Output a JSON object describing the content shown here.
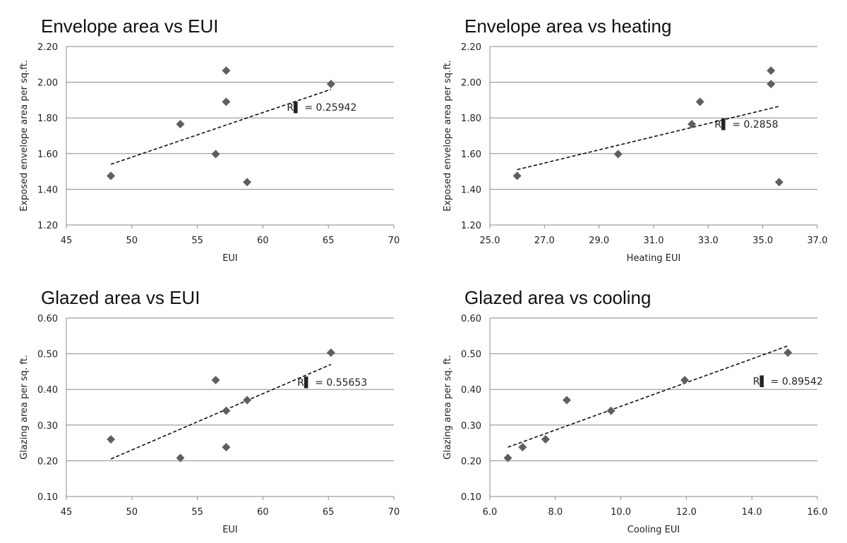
{
  "chart_data": [
    {
      "type": "scatter",
      "title": "Envelope area vs EUI",
      "xlabel": "EUI",
      "ylabel": "Exposed envelope area per sq.ft.",
      "xlim": [
        45,
        70
      ],
      "ylim": [
        1.2,
        2.2
      ],
      "xticks": [
        "45",
        "50",
        "55",
        "60",
        "65",
        "70"
      ],
      "yticks": [
        "1.20",
        "1.40",
        "1.60",
        "1.80",
        "2.00",
        "2.20"
      ],
      "series": [
        {
          "marker_color": "#5f5f5f",
          "x": [
            48.4,
            53.7,
            56.4,
            57.2,
            57.2,
            58.8,
            65.2
          ],
          "y": [
            1.475,
            1.765,
            1.597,
            2.065,
            1.89,
            1.44,
            1.99
          ]
        }
      ],
      "trendline": {
        "x": [
          48.4,
          65.2
        ],
        "y": [
          1.54,
          1.96
        ]
      },
      "r2_label": "R▌ = 0.25942",
      "r2_pos": [
        64.5,
        1.84
      ]
    },
    {
      "type": "scatter",
      "title": "Envelope area vs heating",
      "xlabel": "Heating EUI",
      "ylabel": "Exposed envelope area per sq.ft.",
      "xlim": [
        25,
        37
      ],
      "ylim": [
        1.2,
        2.2
      ],
      "xticks": [
        "25.0",
        "27.0",
        "29.0",
        "31.0",
        "33.0",
        "35.0",
        "37.0"
      ],
      "yticks": [
        "1.20",
        "1.40",
        "1.60",
        "1.80",
        "2.00",
        "2.20"
      ],
      "series": [
        {
          "marker_color": "#5f5f5f",
          "x": [
            26.0,
            29.7,
            32.4,
            32.7,
            35.3,
            35.3,
            35.6
          ],
          "y": [
            1.475,
            1.597,
            1.765,
            1.89,
            2.065,
            1.99,
            1.44
          ]
        }
      ],
      "trendline": {
        "x": [
          26.0,
          35.6
        ],
        "y": [
          1.51,
          1.865
        ]
      },
      "r2_label": "R▌ = 0.2858",
      "r2_pos": [
        34.4,
        1.745
      ]
    },
    {
      "type": "scatter",
      "title": "Glazed area vs EUI",
      "xlabel": "EUI",
      "ylabel": "Glazing area per sq. ft.",
      "xlim": [
        45,
        70
      ],
      "ylim": [
        0.1,
        0.6
      ],
      "xticks": [
        "45",
        "50",
        "55",
        "60",
        "65",
        "70"
      ],
      "yticks": [
        "0.10",
        "0.20",
        "0.30",
        "0.40",
        "0.50",
        "0.60"
      ],
      "series": [
        {
          "marker_color": "#5f5f5f",
          "x": [
            48.4,
            53.7,
            56.4,
            57.2,
            57.2,
            58.8,
            65.2
          ],
          "y": [
            0.26,
            0.208,
            0.426,
            0.34,
            0.238,
            0.37,
            0.503
          ]
        }
      ],
      "trendline": {
        "x": [
          48.4,
          65.2
        ],
        "y": [
          0.205,
          0.47
        ]
      },
      "r2_label": "R▌ = 0.55653",
      "r2_pos": [
        65.3,
        0.41
      ]
    },
    {
      "type": "scatter",
      "title": "Glazed area vs cooling",
      "xlabel": "Cooling EUI",
      "ylabel": "Glazing area per sq. ft.",
      "xlim": [
        6,
        16
      ],
      "ylim": [
        0.1,
        0.6
      ],
      "xticks": [
        "6.0",
        "8.0",
        "10.0",
        "12.0",
        "14.0",
        "16.0"
      ],
      "yticks": [
        "0.10",
        "0.20",
        "0.30",
        "0.40",
        "0.50",
        "0.60"
      ],
      "series": [
        {
          "marker_color": "#5f5f5f",
          "x": [
            6.55,
            7.0,
            7.7,
            8.35,
            9.7,
            11.95,
            15.1
          ],
          "y": [
            0.208,
            0.238,
            0.26,
            0.37,
            0.34,
            0.426,
            0.503
          ]
        }
      ],
      "trendline": {
        "x": [
          6.55,
          15.1
        ],
        "y": [
          0.238,
          0.522
        ]
      },
      "r2_label": "R▌ = 0.89542",
      "r2_pos": [
        15.1,
        0.413
      ]
    }
  ]
}
